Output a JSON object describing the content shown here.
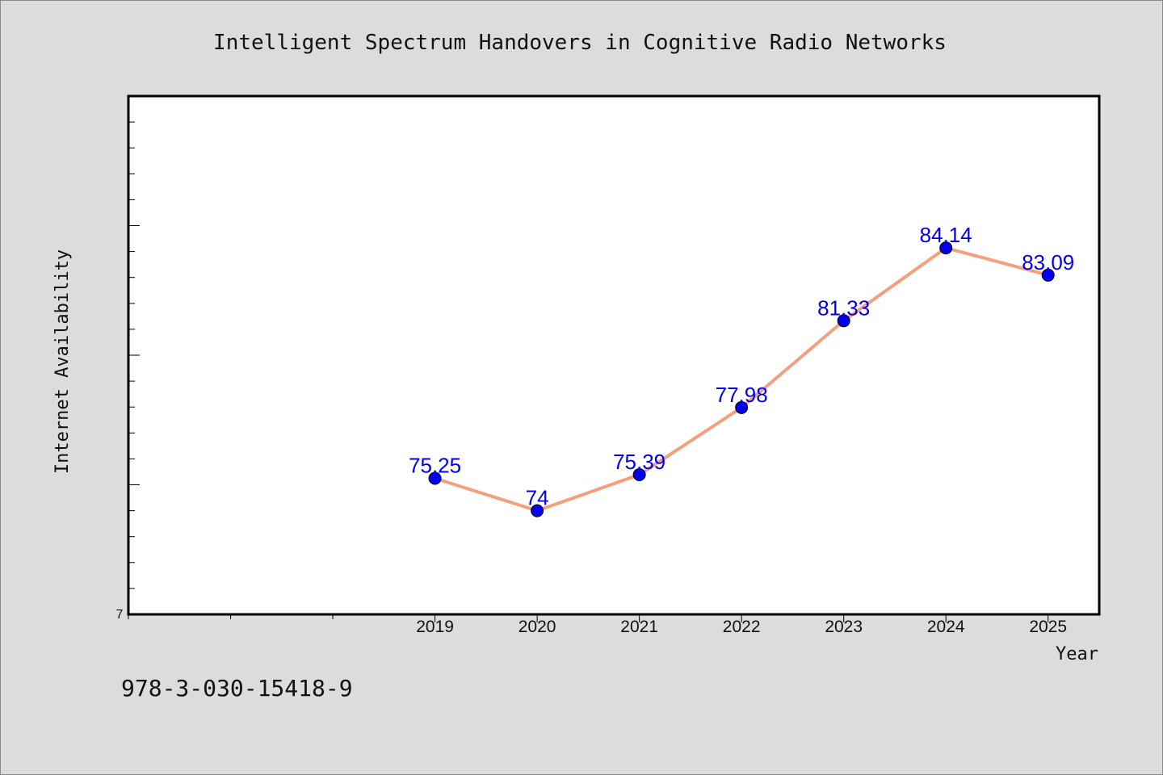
{
  "chart_data": {
    "type": "line",
    "title": "Intelligent Spectrum Handovers in Cognitive Radio Networks",
    "xlabel": "Year",
    "ylabel": "Internet Availability",
    "categories": [
      "2019",
      "2020",
      "2021",
      "2022",
      "2023",
      "2024",
      "2025"
    ],
    "series": [
      {
        "values": [
          75.25,
          74,
          75.39,
          77.98,
          81.33,
          84.14,
          83.09
        ]
      }
    ],
    "data_labels": [
      "75.25",
      "74",
      "75.39",
      "77.98",
      "81.33",
      "84.14",
      "83.09"
    ],
    "y_origin_label": "7",
    "ylim": [
      70,
      90
    ],
    "xlim": [
      2016,
      2025.5
    ],
    "grid": false,
    "line_color": "#f4a07e",
    "marker_color": "#0000ee",
    "label_color": "#0000ee"
  },
  "footer": {
    "text": "978-3-030-15418-9"
  }
}
